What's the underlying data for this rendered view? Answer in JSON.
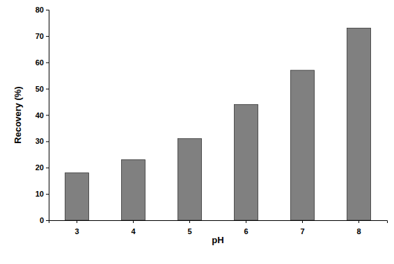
{
  "chart_data": {
    "type": "bar",
    "x_label": "pH",
    "y_label": "Recovery (%)",
    "categories": [
      "3",
      "4",
      "5",
      "6",
      "7",
      "8"
    ],
    "values": [
      18,
      23,
      31,
      44,
      57,
      73
    ],
    "color": "#808080",
    "ylim": [
      0,
      80
    ],
    "yticks": [
      0,
      10,
      20,
      30,
      40,
      50,
      60,
      70,
      80
    ],
    "grid": false
  }
}
